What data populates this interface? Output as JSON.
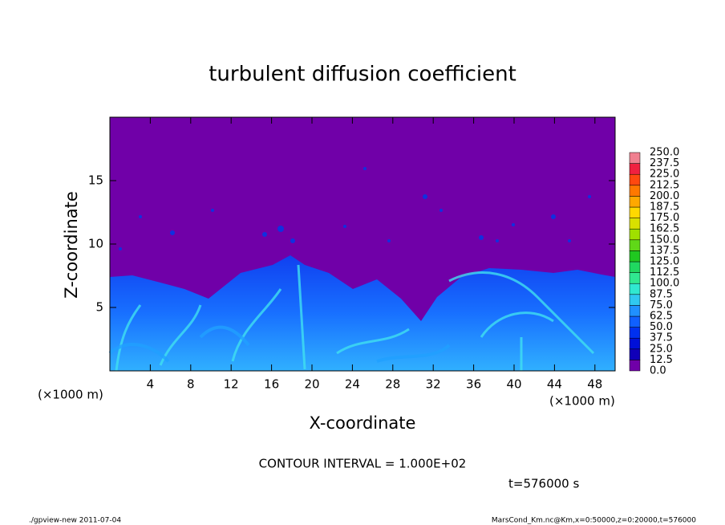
{
  "chart_data": {
    "type": "contour",
    "title": "turbulent diffusion coefficient",
    "x_label": "X-coordinate",
    "y_label": "Z-coordinate",
    "y_unit": "(×1000 m)",
    "x_unit": "(×1000 m)",
    "xlim": [
      0,
      50
    ],
    "ylim": [
      0,
      20
    ],
    "xticks": [
      4,
      8,
      12,
      16,
      20,
      24,
      28,
      32,
      36,
      40,
      44,
      48
    ],
    "yticks": [
      5,
      10,
      15
    ],
    "levels": [
      {
        "value": 0,
        "label": "0.0"
      },
      12.5,
      {
        "value": 25,
        "label": "25.0"
      },
      37.5,
      {
        "value": 50,
        "label": "50.0"
      },
      62.5,
      {
        "value": 75,
        "label": "75.0"
      },
      87.5,
      {
        "value": 100,
        "label": "100.0"
      },
      112.5,
      {
        "value": 125,
        "label": "125.0"
      },
      137.5,
      {
        "value": 150,
        "label": "150.0"
      },
      162.5,
      {
        "value": 175,
        "label": "175.0"
      },
      187.5,
      {
        "value": 200,
        "label": "200.0"
      },
      212.5,
      {
        "value": 225,
        "label": "225.0"
      },
      237.5,
      {
        "value": 250,
        "label": "250.0"
      }
    ],
    "colors": [
      "#7000a8",
      "#1000b8",
      "#0010d8",
      "#0030f0",
      "#1060ff",
      "#2090ff",
      "#30c8f0",
      "#30e8d0",
      "#30e890",
      "#20d860",
      "#20c820",
      "#60d818",
      "#a0e000",
      "#d8e000",
      "#ffd800",
      "#ffa800",
      "#ff7800",
      "#ff4810",
      "#f02040",
      "#f08090"
    ],
    "contour_interval": "CONTOUR INTERVAL = 1.000E+02",
    "time": "t=576000 s",
    "footer_left": "./gpview-new   2011-07-04",
    "footer_right": "MarsCond_Km.nc@Km,x=0:50000,z=0:20000,t=576000"
  }
}
